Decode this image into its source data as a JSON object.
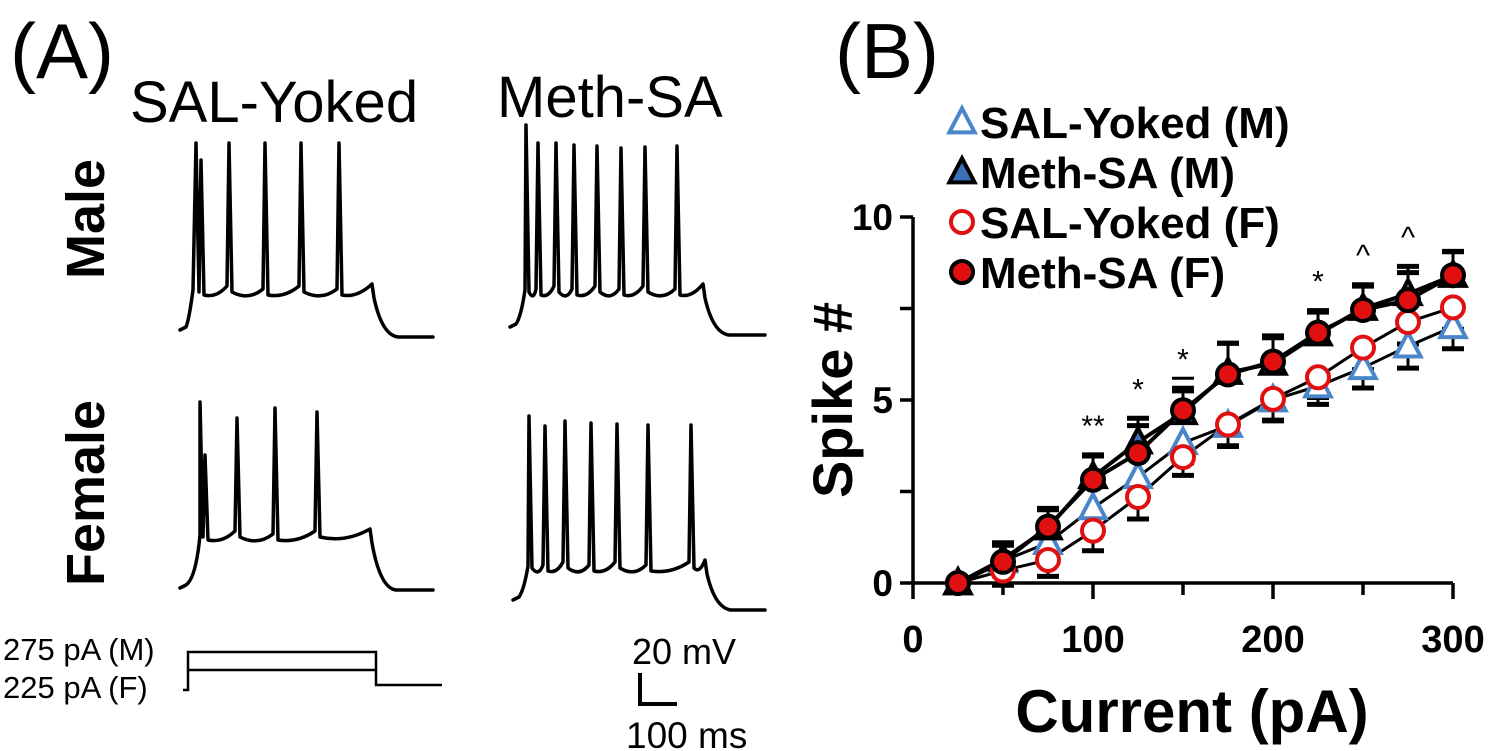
{
  "panel_a": {
    "label": "(A)",
    "col_titles": [
      "SAL-Yoked",
      "Meth-SA"
    ],
    "row_titles": [
      "Male",
      "Female"
    ],
    "step_labels": [
      "275 pA (M)",
      "225 pA (F)"
    ],
    "scale_bar": {
      "voltage": "20 mV",
      "time": "100 ms"
    }
  },
  "chart_data": {
    "type": "line",
    "panel_label": "(B)",
    "title": "",
    "xlabel": "Current (pA)",
    "ylabel": "Spike #",
    "xlim": [
      0,
      300
    ],
    "ylim": [
      0,
      10
    ],
    "xticks": [
      0,
      100,
      200,
      300
    ],
    "xtick_labels": [
      "0",
      "100",
      "200",
      "300"
    ],
    "yticks": [
      0,
      5,
      10
    ],
    "ytick_labels": [
      "0",
      "5",
      "10"
    ],
    "minor_xticks": [
      50,
      150,
      250
    ],
    "minor_yticks": [
      2.5,
      7.5
    ],
    "grid": false,
    "legend_position": "top-left",
    "x": [
      25,
      50,
      75,
      100,
      125,
      150,
      175,
      200,
      225,
      250,
      275,
      300
    ],
    "series": [
      {
        "name": "SAL-Yoked (M)",
        "marker": "triangle-open",
        "color": "#4a86c8",
        "values": [
          0,
          0.6,
          1.1,
          2.05,
          2.9,
          3.83,
          4.3,
          5.0,
          5.38,
          5.88,
          6.47,
          7.0
        ],
        "error": [
          0,
          0.1,
          0.15,
          0.2,
          0.25,
          0.25,
          0.25,
          0.25,
          0.2,
          0.25,
          0.3,
          0.3
        ]
      },
      {
        "name": "Meth-SA (M)",
        "marker": "triangle-filled",
        "color": "#3a70b8",
        "values": [
          0,
          0.65,
          1.5,
          2.9,
          3.85,
          4.65,
          5.75,
          6.0,
          6.8,
          7.5,
          7.9,
          8.4
        ],
        "error": [
          0,
          0.15,
          0.2,
          0.3,
          0.35,
          0.3,
          0.5,
          0.4,
          0.3,
          0.35,
          0.45,
          0.35
        ]
      },
      {
        "name": "SAL-Yoked (F)",
        "marker": "circle-open",
        "color": "#e01010",
        "values": [
          0,
          0.34,
          0.63,
          1.43,
          2.35,
          3.44,
          4.33,
          5.03,
          5.62,
          6.43,
          7.13,
          7.53
        ],
        "error": [
          0,
          0.1,
          0.15,
          0.25,
          0.3,
          0.2,
          0.3,
          0.3,
          0.25,
          0.3,
          0.3,
          0.3
        ]
      },
      {
        "name": "Meth-SA (F)",
        "marker": "circle-filled",
        "color": "#e01010",
        "values": [
          0,
          0.58,
          1.54,
          2.82,
          3.55,
          4.72,
          5.7,
          6.05,
          6.84,
          7.46,
          7.73,
          8.41
        ],
        "error": [
          0,
          0.15,
          0.2,
          0.35,
          0.45,
          0.3,
          0.55,
          0.4,
          0.3,
          0.35,
          0.45,
          0.35
        ]
      }
    ],
    "annotations": [
      {
        "x": 100,
        "text": "**"
      },
      {
        "x": 125,
        "text": "*"
      },
      {
        "x": 150,
        "text": "*"
      },
      {
        "x": 225,
        "text": "*"
      },
      {
        "x": 250,
        "text": "^"
      },
      {
        "x": 275,
        "text": "^"
      }
    ]
  }
}
